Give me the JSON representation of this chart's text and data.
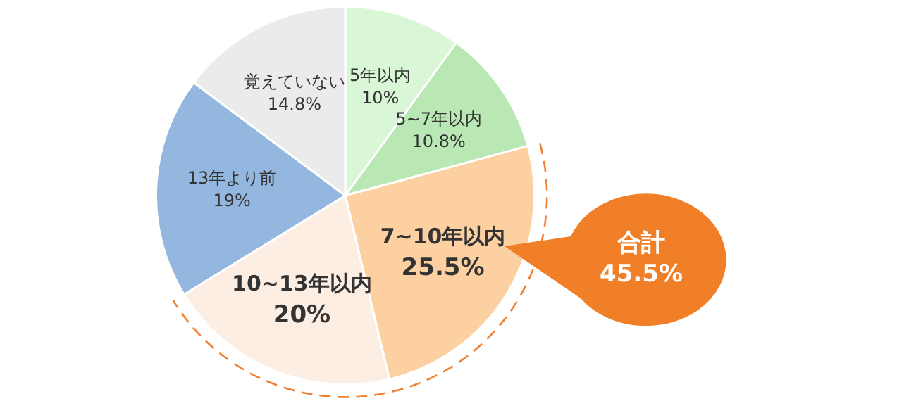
{
  "chart_data": {
    "type": "pie",
    "categories": [
      "5年以内",
      "5~7年以内",
      "7~10年以内",
      "10~13年以内",
      "13年より前",
      "覚えていない"
    ],
    "values": [
      10,
      10.8,
      25.5,
      20,
      19,
      14.8
    ],
    "colors": [
      "#d9f6d6",
      "#b9e8b4",
      "#fdd0a2",
      "#fdeee3",
      "#93b7de",
      "#ebebeb"
    ],
    "value_labels": [
      "10%",
      "10.8%",
      "25.5%",
      "20%",
      "19%",
      "14.8%"
    ],
    "legend": false,
    "annotations": [
      "合計 45.5%"
    ]
  }
}
